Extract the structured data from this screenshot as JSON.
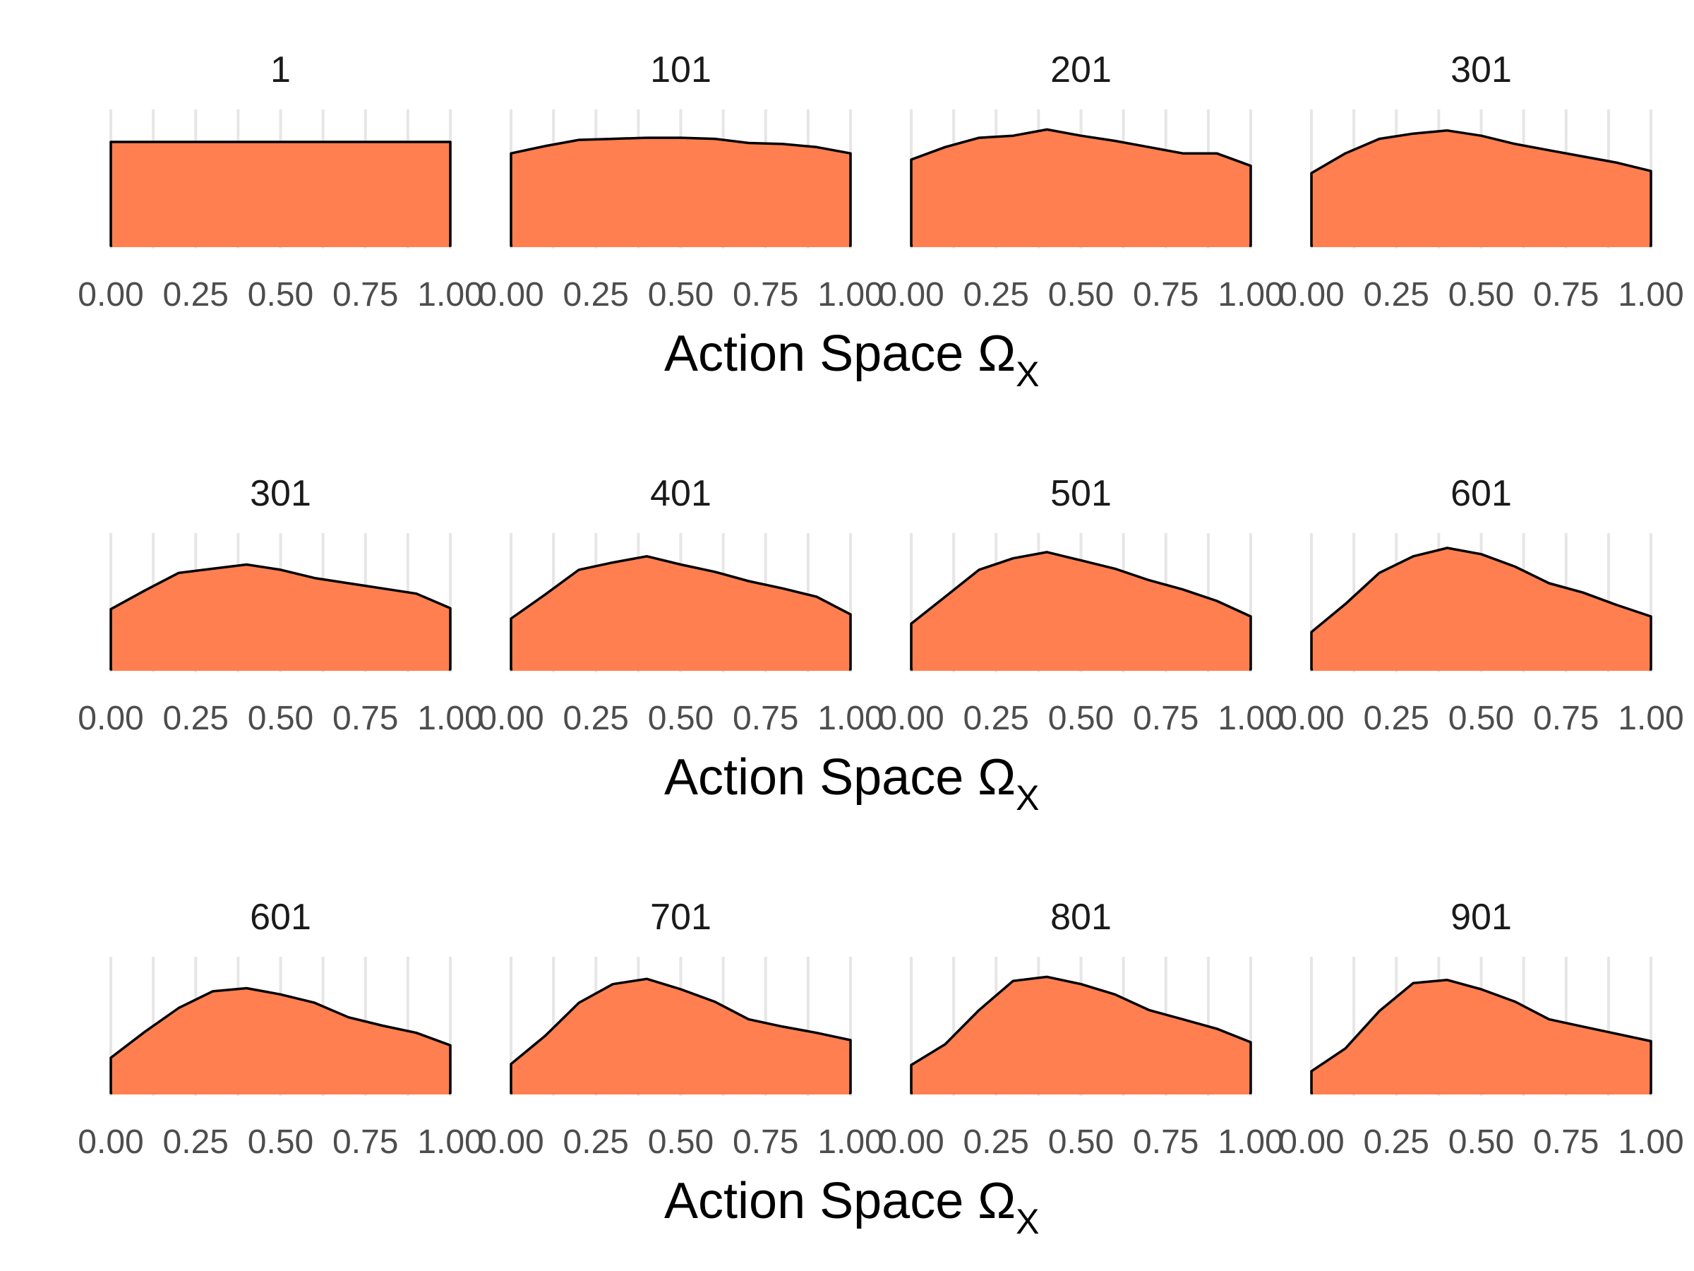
{
  "chart_data": {
    "type": "area",
    "x_ticks": [
      0,
      0.25,
      0.5,
      0.75,
      1
    ],
    "x_tick_labels": [
      "0.00",
      "0.25",
      "0.50",
      "0.75",
      "1.00"
    ],
    "xlim": [
      0,
      1
    ],
    "grid": true,
    "fill_color": "#FF7F50",
    "line_color": "#000000",
    "xlabel": "Action Space",
    "xlabel_symbol": "Ω",
    "xlabel_subscript": "X",
    "x": [
      0,
      0.1,
      0.2,
      0.3,
      0.4,
      0.5,
      0.6,
      0.7,
      0.8,
      0.9,
      1.0
    ],
    "rows": [
      {
        "panels": [
          {
            "title": "1",
            "density": [
              1.0,
              1.0,
              1.0,
              1.0,
              1.0,
              1.0,
              1.0,
              1.0,
              1.0,
              1.0,
              1.0
            ]
          },
          {
            "title": "101",
            "density": [
              0.89,
              0.96,
              1.02,
              1.03,
              1.04,
              1.04,
              1.03,
              0.99,
              0.98,
              0.95,
              0.89
            ]
          },
          {
            "title": "201",
            "density": [
              0.83,
              0.95,
              1.04,
              1.06,
              1.12,
              1.06,
              1.01,
              0.95,
              0.89,
              0.89,
              0.77
            ]
          },
          {
            "title": "301",
            "density": [
              0.7,
              0.89,
              1.03,
              1.08,
              1.11,
              1.06,
              0.98,
              0.92,
              0.86,
              0.8,
              0.72
            ]
          }
        ]
      },
      {
        "panels": [
          {
            "title": "301",
            "density": [
              0.58,
              0.76,
              0.93,
              0.97,
              1.01,
              0.96,
              0.88,
              0.83,
              0.78,
              0.73,
              0.59
            ]
          },
          {
            "title": "401",
            "density": [
              0.49,
              0.72,
              0.96,
              1.03,
              1.09,
              1.01,
              0.94,
              0.85,
              0.78,
              0.7,
              0.53
            ]
          },
          {
            "title": "501",
            "density": [
              0.44,
              0.7,
              0.96,
              1.07,
              1.13,
              1.05,
              0.97,
              0.86,
              0.77,
              0.66,
              0.51
            ]
          },
          {
            "title": "601",
            "density": [
              0.36,
              0.63,
              0.93,
              1.09,
              1.17,
              1.11,
              0.99,
              0.83,
              0.74,
              0.62,
              0.51
            ]
          }
        ]
      },
      {
        "panels": [
          {
            "title": "601",
            "density": [
              0.34,
              0.59,
              0.82,
              0.98,
              1.01,
              0.95,
              0.87,
              0.73,
              0.65,
              0.58,
              0.46
            ]
          },
          {
            "title": "701",
            "density": [
              0.28,
              0.55,
              0.87,
              1.05,
              1.1,
              1.0,
              0.88,
              0.71,
              0.64,
              0.58,
              0.51
            ]
          },
          {
            "title": "801",
            "density": [
              0.27,
              0.47,
              0.8,
              1.08,
              1.12,
              1.05,
              0.95,
              0.8,
              0.71,
              0.62,
              0.49
            ]
          },
          {
            "title": "901",
            "density": [
              0.21,
              0.43,
              0.79,
              1.06,
              1.09,
              1.0,
              0.88,
              0.71,
              0.64,
              0.57,
              0.5
            ]
          }
        ]
      }
    ]
  }
}
